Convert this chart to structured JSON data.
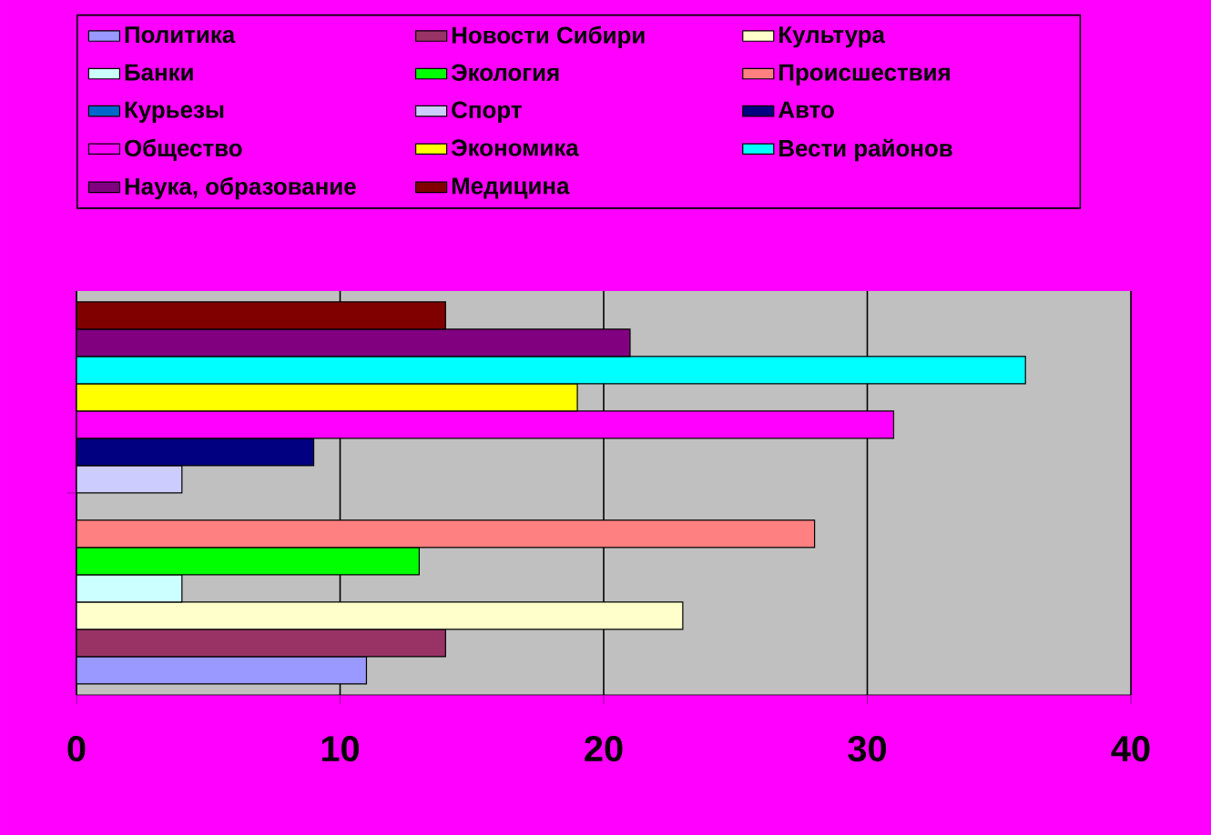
{
  "chart_data": {
    "type": "bar",
    "orientation": "horizontal",
    "categories": [
      null
    ],
    "xlim": [
      0,
      40
    ],
    "xticks": [
      0,
      10,
      20,
      30,
      40
    ],
    "grid": "x",
    "legend": "top",
    "series": [
      {
        "name": "Политика",
        "color": "#9999ff",
        "values": [
          11
        ]
      },
      {
        "name": "Новости Сибири",
        "color": "#993366",
        "values": [
          14
        ]
      },
      {
        "name": "Культура",
        "color": "#ffffcc",
        "values": [
          23
        ]
      },
      {
        "name": "Банки",
        "color": "#ccffff",
        "values": [
          4
        ]
      },
      {
        "name": "Экология",
        "color": "#00ff00",
        "values": [
          13
        ]
      },
      {
        "name": "Происшествия",
        "color": "#ff8080",
        "values": [
          28
        ]
      },
      {
        "name": "Курьезы",
        "color": "#0066cc",
        "values": [
          0
        ]
      },
      {
        "name": "Спорт",
        "color": "#ccccff",
        "values": [
          4
        ]
      },
      {
        "name": "Авто",
        "color": "#000080",
        "values": [
          9
        ]
      },
      {
        "name": "Общество",
        "color": "#ff00ff",
        "values": [
          31
        ]
      },
      {
        "name": "Экономика",
        "color": "#ffff00",
        "values": [
          19
        ]
      },
      {
        "name": "Вести районов",
        "color": "#00ffff",
        "values": [
          36
        ]
      },
      {
        "name": "Наука, образование",
        "color": "#800080",
        "values": [
          21
        ]
      },
      {
        "name": "Медицина",
        "color": "#800000",
        "values": [
          14
        ]
      }
    ]
  }
}
